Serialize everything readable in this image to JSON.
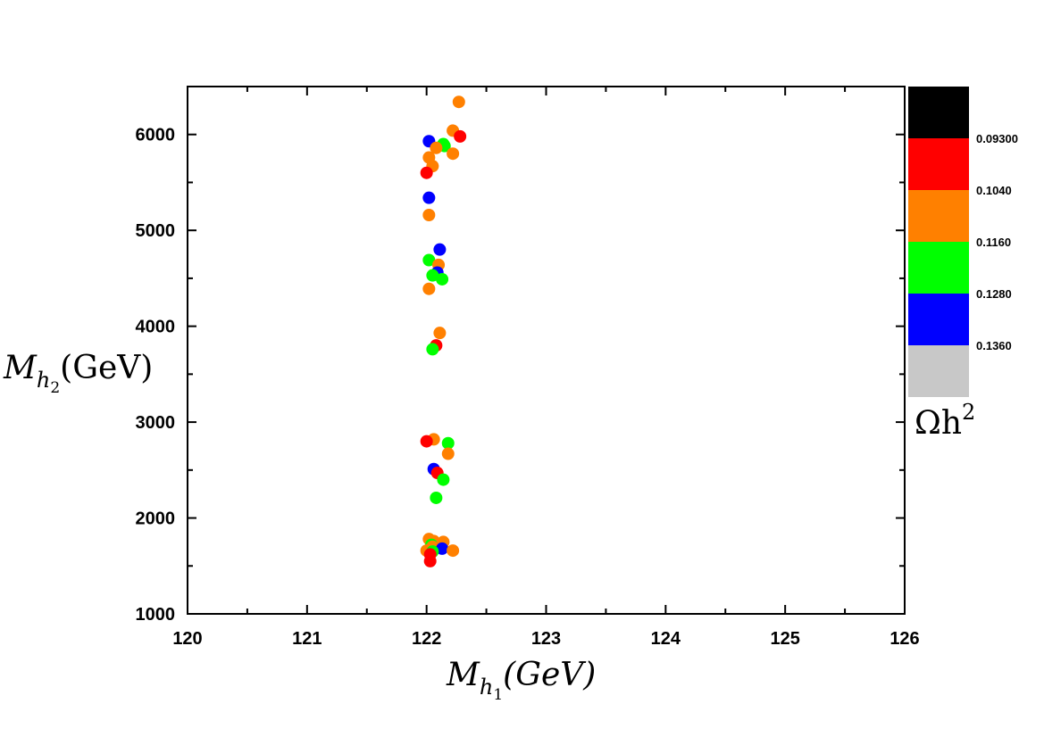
{
  "chart_data": {
    "type": "scatter",
    "xlim": [
      120,
      126
    ],
    "ylim": [
      1000,
      6500
    ],
    "x_ticks": [
      "120",
      "121",
      "122",
      "123",
      "124",
      "125",
      "126"
    ],
    "y_ticks": [
      "1000",
      "2000",
      "3000",
      "4000",
      "5000",
      "6000"
    ],
    "xlabel": {
      "main": "M",
      "sub": "h",
      "subsub": "1",
      "unit": "(GeV)"
    },
    "ylabel": {
      "main": "M",
      "sub": "h",
      "subsub": "2",
      "unit": "(GeV)"
    },
    "grid": false,
    "colorbar": {
      "title": {
        "main": "Ωh",
        "sup": "2"
      },
      "placement": "right",
      "bands": [
        "#000000",
        "#ff0000",
        "#ff8000",
        "#00ff00",
        "#0000ff",
        "#c8c8c8"
      ],
      "labels": [
        "0.09300",
        "0.1040",
        "0.1160",
        "0.1280",
        "0.1360"
      ]
    },
    "points": [
      {
        "x": 122.27,
        "y": 6340,
        "color": "#ff8000"
      },
      {
        "x": 122.22,
        "y": 6040,
        "color": "#ff8000"
      },
      {
        "x": 122.28,
        "y": 5980,
        "color": "#ff0000"
      },
      {
        "x": 122.02,
        "y": 5930,
        "color": "#0000ff"
      },
      {
        "x": 122.14,
        "y": 5900,
        "color": "#00ff00"
      },
      {
        "x": 122.15,
        "y": 5880,
        "color": "#00ff00"
      },
      {
        "x": 122.08,
        "y": 5860,
        "color": "#ff8000"
      },
      {
        "x": 122.22,
        "y": 5800,
        "color": "#ff8000"
      },
      {
        "x": 122.02,
        "y": 5760,
        "color": "#ff8000"
      },
      {
        "x": 122.05,
        "y": 5670,
        "color": "#ff8000"
      },
      {
        "x": 122.0,
        "y": 5600,
        "color": "#ff0000"
      },
      {
        "x": 122.02,
        "y": 5340,
        "color": "#0000ff"
      },
      {
        "x": 122.02,
        "y": 5160,
        "color": "#ff8000"
      },
      {
        "x": 122.11,
        "y": 4800,
        "color": "#0000ff"
      },
      {
        "x": 122.02,
        "y": 4690,
        "color": "#00ff00"
      },
      {
        "x": 122.1,
        "y": 4640,
        "color": "#ff8000"
      },
      {
        "x": 122.09,
        "y": 4560,
        "color": "#0000ff"
      },
      {
        "x": 122.05,
        "y": 4530,
        "color": "#00ff00"
      },
      {
        "x": 122.13,
        "y": 4490,
        "color": "#00ff00"
      },
      {
        "x": 122.02,
        "y": 4390,
        "color": "#ff8000"
      },
      {
        "x": 122.11,
        "y": 3930,
        "color": "#ff8000"
      },
      {
        "x": 122.08,
        "y": 3800,
        "color": "#ff0000"
      },
      {
        "x": 122.05,
        "y": 3760,
        "color": "#00ff00"
      },
      {
        "x": 122.06,
        "y": 2820,
        "color": "#ff8000"
      },
      {
        "x": 122.0,
        "y": 2800,
        "color": "#ff0000"
      },
      {
        "x": 122.18,
        "y": 2780,
        "color": "#00ff00"
      },
      {
        "x": 122.18,
        "y": 2670,
        "color": "#ff8000"
      },
      {
        "x": 122.06,
        "y": 2510,
        "color": "#0000ff"
      },
      {
        "x": 122.09,
        "y": 2470,
        "color": "#ff0000"
      },
      {
        "x": 122.14,
        "y": 2400,
        "color": "#00ff00"
      },
      {
        "x": 122.08,
        "y": 2210,
        "color": "#00ff00"
      },
      {
        "x": 122.02,
        "y": 1780,
        "color": "#ff8000"
      },
      {
        "x": 122.06,
        "y": 1760,
        "color": "#ff8000"
      },
      {
        "x": 122.14,
        "y": 1750,
        "color": "#ff8000"
      },
      {
        "x": 122.04,
        "y": 1720,
        "color": "#00ff00"
      },
      {
        "x": 122.05,
        "y": 1700,
        "color": "#ff8000"
      },
      {
        "x": 122.13,
        "y": 1680,
        "color": "#0000ff"
      },
      {
        "x": 122.0,
        "y": 1660,
        "color": "#ff8000"
      },
      {
        "x": 122.22,
        "y": 1660,
        "color": "#ff8000"
      },
      {
        "x": 122.05,
        "y": 1650,
        "color": "#00ff00"
      },
      {
        "x": 122.03,
        "y": 1620,
        "color": "#ff0000"
      },
      {
        "x": 122.03,
        "y": 1550,
        "color": "#ff0000"
      }
    ]
  }
}
